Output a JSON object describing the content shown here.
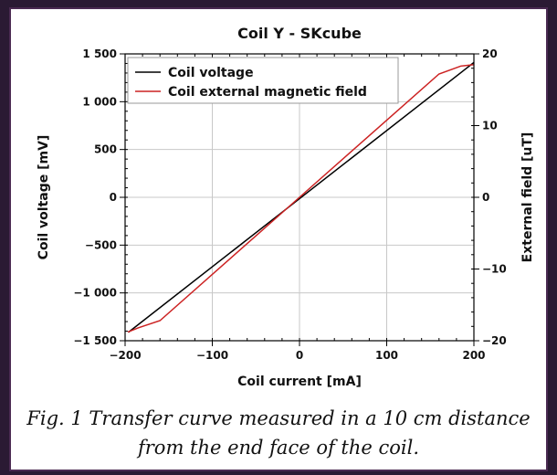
{
  "chart_data": {
    "type": "line",
    "title": "Coil Y - SKcube",
    "xlabel": "Coil current [mA]",
    "ylabel": "Coil voltage [mV]",
    "y2label": "External field [uT]",
    "xlim": [
      -200,
      200
    ],
    "ylim": [
      -1500,
      1500
    ],
    "y2lim": [
      -20,
      20
    ],
    "xticks": [
      -200,
      -100,
      0,
      100,
      200
    ],
    "xtick_labels": [
      "−200",
      "−100",
      "0",
      "100",
      "200"
    ],
    "yticks": [
      -1500,
      -1000,
      -500,
      0,
      500,
      1000,
      1500
    ],
    "ytick_labels": [
      "−1 500",
      "−1 000",
      "−500",
      "0",
      "500",
      "1 000",
      "1 500"
    ],
    "y2ticks": [
      -20,
      -10,
      0,
      10,
      20
    ],
    "y2tick_labels": [
      "−20",
      "−10",
      "0",
      "10",
      "20"
    ],
    "grid": true,
    "legend_position": "top-left",
    "series": [
      {
        "name": "Coil voltage",
        "axis": "left",
        "color": "#000000",
        "x": [
          -196,
          200
        ],
        "y": [
          -1410,
          1410
        ]
      },
      {
        "name": "Coil external magnetic field",
        "axis": "right",
        "color": "#cc2222",
        "x": [
          -197,
          -185,
          -160,
          0,
          160,
          185,
          200
        ],
        "y": [
          -18.8,
          -18.2,
          -17.2,
          0,
          17.2,
          18.3,
          18.5
        ]
      }
    ]
  },
  "caption": {
    "line1": "Fig. 1 Transfer curve measured in a 10 cm distance",
    "line2": "from the end face of the coil."
  }
}
